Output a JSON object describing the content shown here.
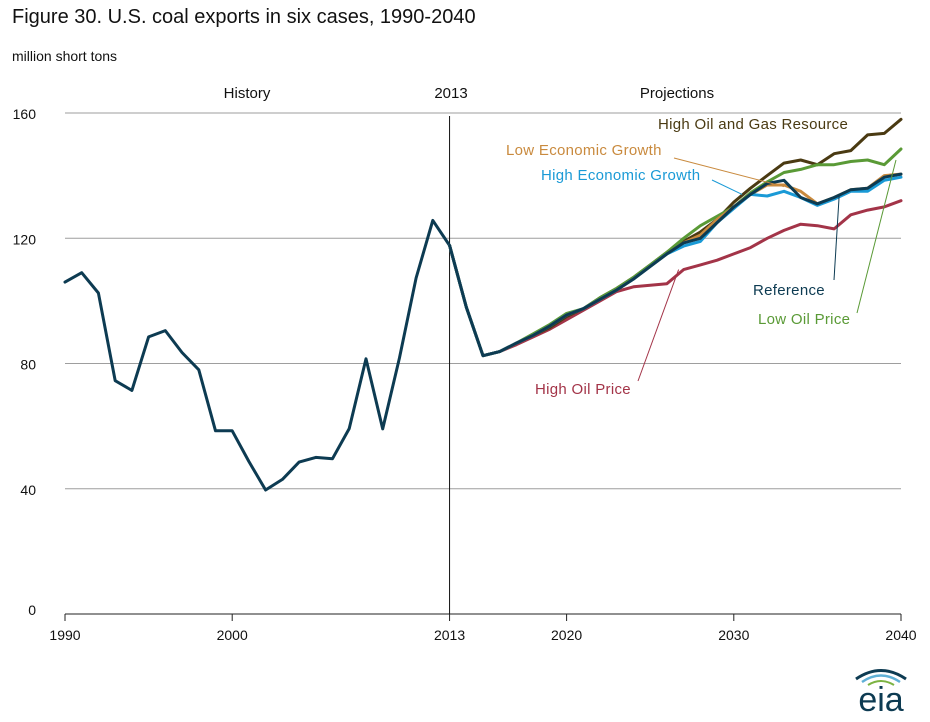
{
  "title": "Figure 30. U.S. coal exports in six cases, 1990-2040",
  "units_label": "million  short tons",
  "logo_text": "eia",
  "chart_data": {
    "type": "line",
    "title": "Figure 30. U.S. coal exports in six cases, 1990-2040",
    "ylabel": "million  short tons",
    "xlim": [
      1990,
      2040
    ],
    "ylim": [
      0,
      160
    ],
    "x_ticks": [
      1990,
      2000,
      2013,
      2020,
      2030,
      2040
    ],
    "y_ticks": [
      0,
      40,
      80,
      120,
      160
    ],
    "grid": "horizontal",
    "divider_year": 2013,
    "region_labels": {
      "history": "History",
      "divider": "2013",
      "projections": "Projections"
    },
    "series": [
      {
        "name": "History",
        "color": "#0d3b52",
        "x": [
          1990,
          1991,
          1992,
          1993,
          1994,
          1995,
          1996,
          1997,
          1998,
          1999,
          2000,
          2001,
          2002,
          2003,
          2004,
          2005,
          2006,
          2007,
          2008,
          2009,
          2010,
          2011,
          2012,
          2013
        ],
        "y": [
          106,
          109,
          102.5,
          74.5,
          71.4,
          88.5,
          90.5,
          83.5,
          78,
          58.5,
          58.5,
          48.7,
          39.6,
          43,
          48.5,
          50,
          49.6,
          59.2,
          81.5,
          59.1,
          81.7,
          107.3,
          125.7,
          117.7
        ]
      },
      {
        "name": "High Oil and Gas Resource",
        "color": "#4a3a12",
        "x": [
          2013,
          2014,
          2015,
          2016,
          2017,
          2018,
          2019,
          2020,
          2021,
          2022,
          2023,
          2024,
          2025,
          2026,
          2027,
          2028,
          2029,
          2030,
          2031,
          2032,
          2033,
          2034,
          2035,
          2036,
          2037,
          2038,
          2039,
          2040
        ],
        "y": [
          117.7,
          98,
          82.5,
          83.8,
          86.5,
          89,
          91.5,
          95,
          97.5,
          101,
          104,
          107.5,
          111.5,
          115.5,
          119,
          122,
          126,
          131.5,
          136,
          140,
          144,
          145,
          143.5,
          147,
          148,
          153,
          153.5,
          158
        ]
      },
      {
        "name": "Low Oil Price",
        "color": "#5a9a36",
        "x": [
          2013,
          2014,
          2015,
          2016,
          2017,
          2018,
          2019,
          2020,
          2021,
          2022,
          2023,
          2024,
          2025,
          2026,
          2027,
          2028,
          2029,
          2030,
          2031,
          2032,
          2033,
          2034,
          2035,
          2036,
          2037,
          2038,
          2039,
          2040
        ],
        "y": [
          117.7,
          98,
          82.5,
          83.8,
          86.5,
          89.5,
          92.5,
          96,
          97.5,
          101,
          104,
          107.5,
          111.5,
          115.5,
          120,
          124,
          127,
          130,
          134.5,
          138,
          141,
          142,
          143.5,
          143.5,
          144.5,
          145,
          143.5,
          148.5
        ]
      },
      {
        "name": "Low Economic Growth",
        "color": "#c98a3e",
        "x": [
          2013,
          2014,
          2015,
          2016,
          2017,
          2018,
          2019,
          2020,
          2021,
          2022,
          2023,
          2024,
          2025,
          2026,
          2027,
          2028,
          2029,
          2030,
          2031,
          2032,
          2033,
          2034,
          2035,
          2036,
          2037,
          2038,
          2039,
          2040
        ],
        "y": [
          117.7,
          98,
          82.5,
          83.8,
          86.5,
          89,
          92,
          95.5,
          97.5,
          100.5,
          103.5,
          107,
          111,
          115,
          118.5,
          121,
          126,
          130,
          134,
          137,
          137,
          135,
          131,
          133,
          135.5,
          136,
          140,
          140.5
        ]
      },
      {
        "name": "High Economic Growth",
        "color": "#1a9ad6",
        "x": [
          2013,
          2014,
          2015,
          2016,
          2017,
          2018,
          2019,
          2020,
          2021,
          2022,
          2023,
          2024,
          2025,
          2026,
          2027,
          2028,
          2029,
          2030,
          2031,
          2032,
          2033,
          2034,
          2035,
          2036,
          2037,
          2038,
          2039,
          2040
        ],
        "y": [
          117.7,
          98,
          82.5,
          83.8,
          86.5,
          89,
          92,
          95.5,
          97.5,
          100.5,
          103.5,
          107,
          111,
          115,
          117.5,
          119,
          125,
          129.5,
          134,
          133.5,
          135,
          133,
          130.5,
          132.5,
          135,
          135,
          138.5,
          139.5
        ]
      },
      {
        "name": "Reference",
        "color": "#0d3b52",
        "x": [
          2013,
          2014,
          2015,
          2016,
          2017,
          2018,
          2019,
          2020,
          2021,
          2022,
          2023,
          2024,
          2025,
          2026,
          2027,
          2028,
          2029,
          2030,
          2031,
          2032,
          2033,
          2034,
          2035,
          2036,
          2037,
          2038,
          2039,
          2040
        ],
        "y": [
          117.7,
          98,
          82.5,
          83.8,
          86.5,
          89,
          92,
          95.5,
          97.5,
          100.5,
          103.5,
          107,
          111,
          115,
          118.5,
          120,
          125,
          130,
          134,
          137.5,
          138.5,
          133,
          131,
          133,
          135.5,
          136,
          139.5,
          140.5
        ]
      },
      {
        "name": "High Oil Price",
        "color": "#a33448",
        "x": [
          2013,
          2014,
          2015,
          2016,
          2017,
          2018,
          2019,
          2020,
          2021,
          2022,
          2023,
          2024,
          2025,
          2026,
          2027,
          2028,
          2029,
          2030,
          2031,
          2032,
          2033,
          2034,
          2035,
          2036,
          2037,
          2038,
          2039,
          2040
        ],
        "y": [
          117.7,
          98,
          82.5,
          83.8,
          86,
          88.5,
          91,
          94,
          97,
          100,
          103,
          104.5,
          105,
          105.5,
          110,
          111.5,
          113,
          115,
          117,
          120,
          122.5,
          124.5,
          124,
          123,
          127.5,
          129,
          130,
          132
        ]
      }
    ],
    "annotations": [
      {
        "text": "High Oil and Gas Resource",
        "series": "High Oil and Gas Resource"
      },
      {
        "text": "Low Economic Growth",
        "series": "Low Economic Growth"
      },
      {
        "text": "High Economic Growth",
        "series": "High Economic Growth"
      },
      {
        "text": "Reference",
        "series": "Reference"
      },
      {
        "text": "Low Oil Price",
        "series": "Low Oil Price"
      },
      {
        "text": "High Oil Price",
        "series": "High Oil Price"
      }
    ]
  }
}
